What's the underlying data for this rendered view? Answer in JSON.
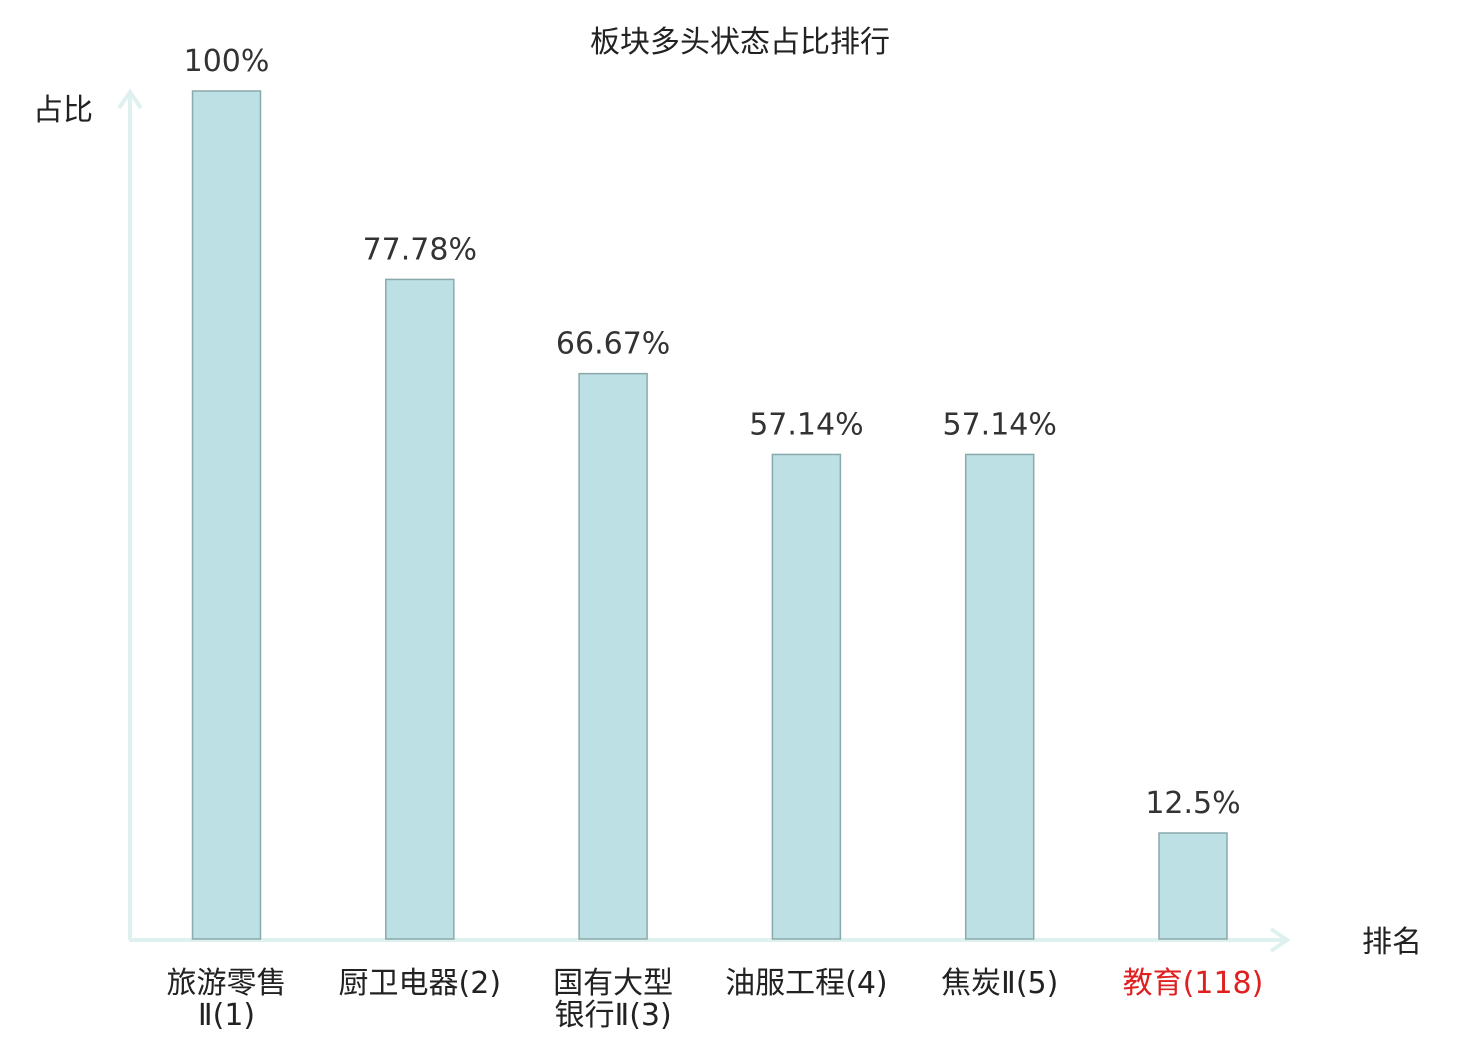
{
  "chart_data": {
    "type": "bar",
    "title": "板块多头状态占比排行",
    "ylabel": "占比",
    "xlabel": "排名",
    "ylim": [
      0,
      100
    ],
    "categories": [
      [
        "旅游零售",
        "Ⅱ(1)"
      ],
      [
        "厨卫电器(2)"
      ],
      [
        "国有大型",
        "银行Ⅱ(3)"
      ],
      [
        "油服工程(4)"
      ],
      [
        "焦炭Ⅱ(5)"
      ],
      [
        "教育(118)"
      ]
    ],
    "values": [
      100,
      77.78,
      66.67,
      57.14,
      57.14,
      12.5
    ],
    "value_labels": [
      "100%",
      "77.78%",
      "66.67%",
      "57.14%",
      "57.14%",
      "12.5%"
    ],
    "highlight_index": 5,
    "colors": {
      "bar_fill": "#bce0e3",
      "bar_stroke": "#8aa9ac",
      "axis": "#dff1ef",
      "text": "#333333",
      "highlight_text": "#e02020"
    }
  }
}
